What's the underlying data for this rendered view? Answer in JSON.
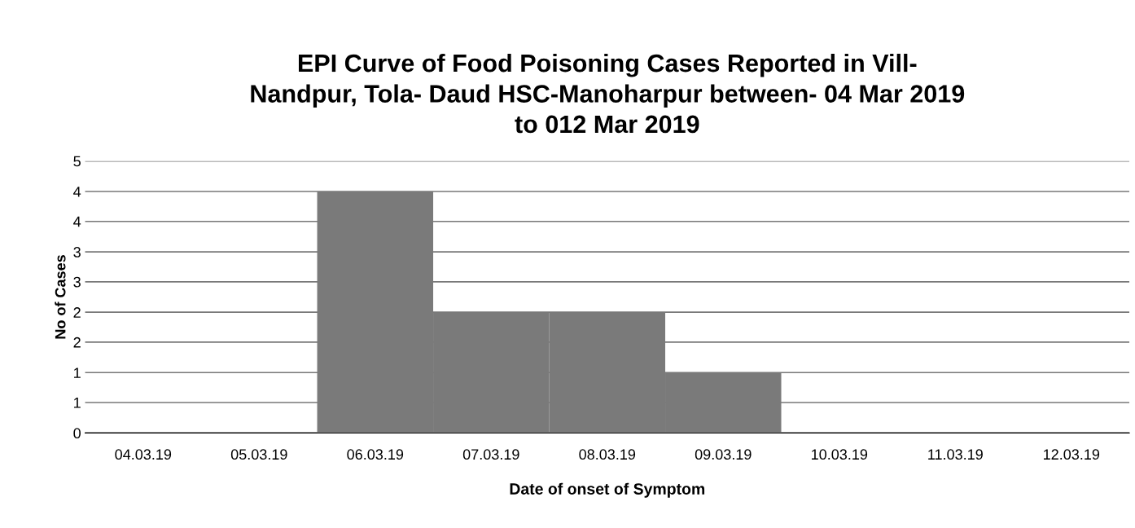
{
  "chart_data": {
    "type": "bar",
    "title": "EPI Curve of Food Poisoning Cases Reported in Vill-\nNandpur, Tola- Daud HSC-Manoharpur between- 04 Mar 2019\nto 012 Mar 2019",
    "xlabel": "Date of onset of Symptom",
    "ylabel": "No of Cases",
    "categories": [
      "04.03.19",
      "05.03.19",
      "06.03.19",
      "07.03.19",
      "08.03.19",
      "09.03.19",
      "10.03.19",
      "11.03.19",
      "12.03.19"
    ],
    "values": [
      0,
      0,
      4.44,
      2.22,
      2.22,
      1.11,
      0,
      0,
      0
    ],
    "color": "#7a7a7a",
    "ylim": [
      0,
      5
    ],
    "yticks": [
      0,
      {
        "value": 0.56,
        "label": "1"
      },
      {
        "value": 1.11,
        "label": "1"
      },
      {
        "value": 1.67,
        "label": "2"
      },
      {
        "value": 2.22,
        "label": "2"
      },
      {
        "value": 2.78,
        "label": "3"
      },
      {
        "value": 3.33,
        "label": "3"
      },
      {
        "value": 3.89,
        "label": "4"
      },
      {
        "value": 4.44,
        "label": "4"
      },
      5
    ],
    "grid": "y",
    "legend": false
  }
}
